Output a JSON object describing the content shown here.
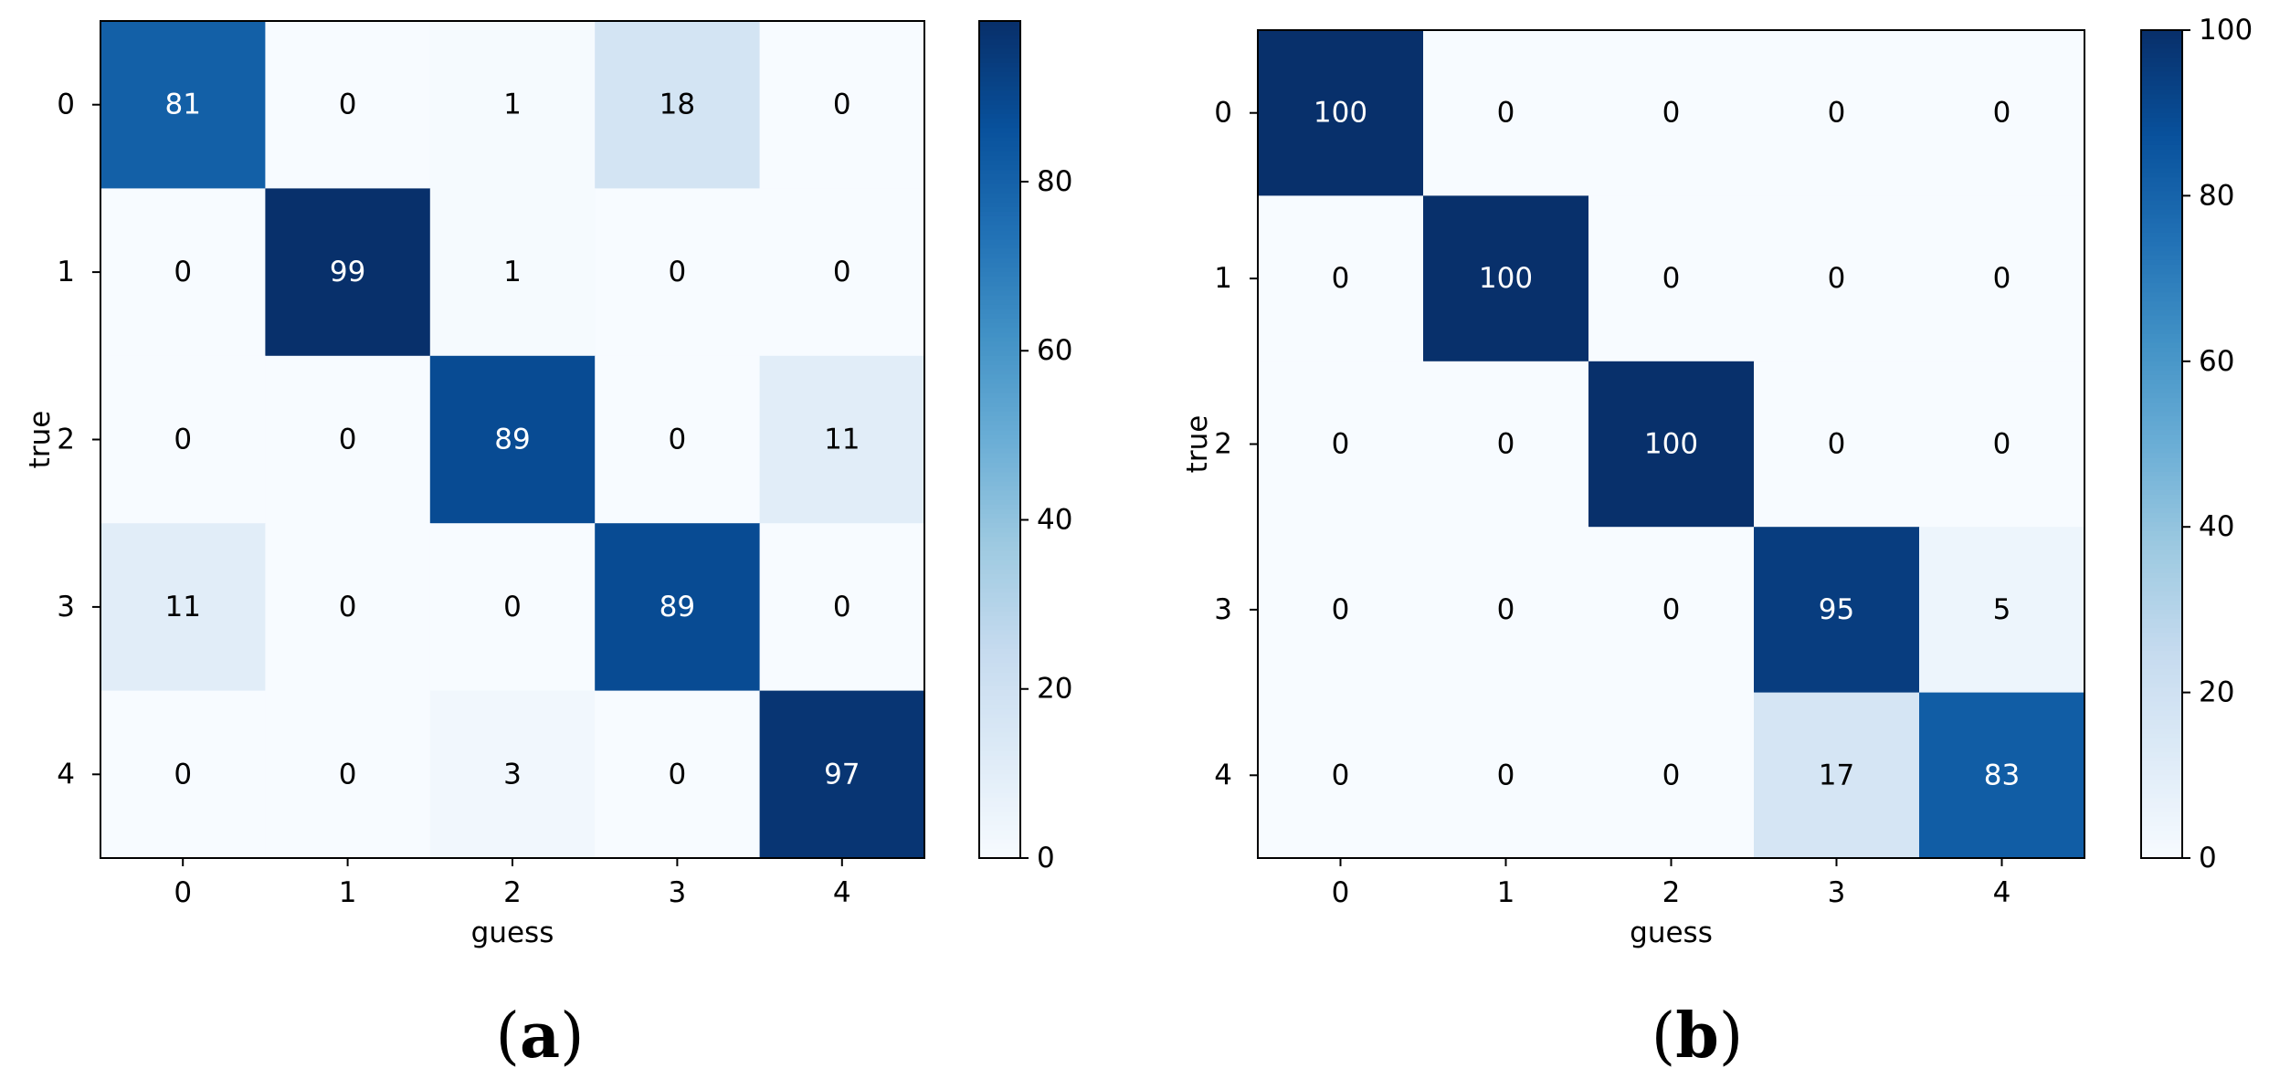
{
  "chart_data": [
    {
      "type": "heatmap",
      "panel_label": "a",
      "title": "",
      "xlabel": "guess",
      "ylabel": "true",
      "x_categories": [
        "0",
        "1",
        "2",
        "3",
        "4"
      ],
      "y_categories": [
        "0",
        "1",
        "2",
        "3",
        "4"
      ],
      "values": [
        [
          81,
          0,
          1,
          18,
          0
        ],
        [
          0,
          99,
          1,
          0,
          0
        ],
        [
          0,
          0,
          89,
          0,
          11
        ],
        [
          11,
          0,
          0,
          89,
          0
        ],
        [
          0,
          0,
          3,
          0,
          97
        ]
      ],
      "colormap": "Blues",
      "color_range": [
        0,
        99
      ],
      "colorbar_ticks": [
        "0",
        "20",
        "40",
        "60",
        "80"
      ],
      "colorbar_tick_values": [
        0,
        20,
        40,
        60,
        80
      ],
      "grid": false
    },
    {
      "type": "heatmap",
      "panel_label": "b",
      "title": "",
      "xlabel": "guess",
      "ylabel": "true",
      "x_categories": [
        "0",
        "1",
        "2",
        "3",
        "4"
      ],
      "y_categories": [
        "0",
        "1",
        "2",
        "3",
        "4"
      ],
      "values": [
        [
          100,
          0,
          0,
          0,
          0
        ],
        [
          0,
          100,
          0,
          0,
          0
        ],
        [
          0,
          0,
          100,
          0,
          0
        ],
        [
          0,
          0,
          0,
          95,
          5
        ],
        [
          0,
          0,
          0,
          17,
          83
        ]
      ],
      "colormap": "Blues",
      "color_range": [
        0,
        100
      ],
      "colorbar_ticks": [
        "0",
        "20",
        "40",
        "60",
        "80",
        "100"
      ],
      "colorbar_tick_values": [
        0,
        20,
        40,
        60,
        80,
        100
      ],
      "grid": false
    }
  ],
  "colors": {
    "text_dark": "#000000",
    "text_light": "#ffffff",
    "axis": "#000000"
  }
}
